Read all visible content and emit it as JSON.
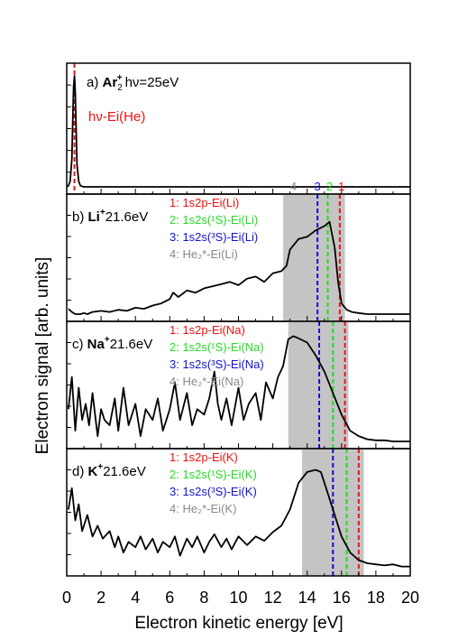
{
  "chart_data": {
    "type": "line",
    "xlabel": "Electron kinetic energy [eV]",
    "ylabel": "Electron signal [arb. units]",
    "xlim": [
      0,
      20
    ],
    "xticks": [
      "0",
      "2",
      "4",
      "6",
      "8",
      "10",
      "12",
      "14",
      "16",
      "18",
      "20"
    ],
    "grid": false,
    "colors": {
      "line": "#000000",
      "c1": "#ee1111",
      "c2": "#22dd22",
      "c3": "#1111cc",
      "c4": "#888888",
      "shade": "#c4c4c4"
    },
    "panels": [
      {
        "id": "a",
        "label_prefix": "a)",
        "label_bold": "Ar",
        "label_sub": "2",
        "label_sup": "+",
        "label_suffix": "hν=25eV",
        "annotation": "hν-Ei(He)",
        "ylim": [
          0,
          1
        ],
        "shade": null,
        "vlines": [
          {
            "x": 0.45,
            "color": "c1"
          }
        ],
        "x": [
          0.0,
          0.1,
          0.2,
          0.3,
          0.35,
          0.4,
          0.45,
          0.5,
          0.55,
          0.6,
          0.7,
          0.8,
          1.0,
          2,
          4,
          6,
          8,
          10,
          12,
          14,
          16,
          18,
          20
        ],
        "y": [
          0.0,
          0.01,
          0.05,
          0.25,
          0.6,
          0.9,
          1.0,
          0.85,
          0.5,
          0.2,
          0.05,
          0.01,
          0.0,
          0,
          0,
          0,
          0,
          0,
          0,
          0,
          0,
          0,
          0
        ]
      },
      {
        "id": "b",
        "label_prefix": "b)",
        "label_bold": "Li",
        "label_sup": "+",
        "label_suffix": "21.6eV",
        "ylim": [
          0,
          1
        ],
        "shade": [
          12.6,
          16.2
        ],
        "top_numbers": [
          {
            "text": "4",
            "x": 13.2,
            "color": "c4"
          },
          {
            "text": "3",
            "x": 14.6,
            "color": "c3"
          },
          {
            "text": "2",
            "x": 15.3,
            "color": "c2"
          },
          {
            "text": "1",
            "x": 16.0,
            "color": "c1"
          }
        ],
        "vlines": [
          {
            "x": 14.6,
            "color": "c3"
          },
          {
            "x": 15.2,
            "color": "c2"
          },
          {
            "x": 15.9,
            "color": "c1"
          }
        ],
        "legend": [
          {
            "text": "1: 1s2p-Ei(Li)",
            "color": "c1"
          },
          {
            "text": "2: 1s2s(¹S)-Ei(Li)",
            "color": "c2"
          },
          {
            "text": "3: 1s2s(³S)-Ei(Li)",
            "color": "c3"
          },
          {
            "text": "4: He₂*-Ei(Li)",
            "color": "c4"
          }
        ],
        "x": [
          0.1,
          0.3,
          0.5,
          0.8,
          1.0,
          1.2,
          1.5,
          2.0,
          2.5,
          3.0,
          3.5,
          4.0,
          4.5,
          5.0,
          5.5,
          6.0,
          6.2,
          6.5,
          7.0,
          7.5,
          8.0,
          8.5,
          9.0,
          9.5,
          10.0,
          10.5,
          11.0,
          11.5,
          12.0,
          12.5,
          12.8,
          13.0,
          13.5,
          14.0,
          14.5,
          15.0,
          15.3,
          15.6,
          15.8,
          16.0,
          16.3,
          16.6,
          17.0,
          17.5,
          18.0,
          18.5,
          19.0,
          19.5,
          20.0
        ],
        "y": [
          0.05,
          0.02,
          0.0,
          0.0,
          0.01,
          0.0,
          0.02,
          0.03,
          0.02,
          0.04,
          0.03,
          0.06,
          0.05,
          0.08,
          0.1,
          0.14,
          0.2,
          0.16,
          0.22,
          0.2,
          0.24,
          0.26,
          0.28,
          0.3,
          0.27,
          0.33,
          0.35,
          0.3,
          0.38,
          0.4,
          0.45,
          0.6,
          0.7,
          0.72,
          0.78,
          0.82,
          0.86,
          0.62,
          0.3,
          0.1,
          0.04,
          0.02,
          0.01,
          0.0,
          0.0,
          0.0,
          0.0,
          0.0,
          0.0
        ]
      },
      {
        "id": "c",
        "label_prefix": "c)",
        "label_bold": "Na",
        "label_sup": "+",
        "label_suffix": "21.6eV",
        "ylim": [
          0,
          1
        ],
        "shade": [
          12.9,
          16.4
        ],
        "vlines": [
          {
            "x": 14.7,
            "color": "c3"
          },
          {
            "x": 15.5,
            "color": "c2"
          },
          {
            "x": 16.2,
            "color": "c1"
          }
        ],
        "legend": [
          {
            "text": "1: 1s2p-Ei(Na)",
            "color": "c1"
          },
          {
            "text": "2: 1s2s(¹S)-Ei(Na)",
            "color": "c2"
          },
          {
            "text": "3: 1s2s(³S)-Ei(Na)",
            "color": "c3"
          },
          {
            "text": "4: He₂*-Ei(Na)",
            "color": "c4"
          }
        ],
        "x": [
          0.1,
          0.3,
          0.5,
          0.7,
          0.9,
          1.1,
          1.3,
          1.5,
          1.8,
          2.0,
          2.2,
          2.5,
          2.8,
          3.0,
          3.3,
          3.6,
          4.0,
          4.3,
          4.6,
          5.0,
          5.3,
          5.6,
          6.0,
          6.3,
          6.6,
          7.0,
          7.3,
          7.6,
          8.0,
          8.3,
          8.6,
          8.8,
          9.0,
          9.3,
          9.6,
          10.0,
          10.3,
          10.6,
          11.0,
          11.3,
          11.6,
          12.0,
          12.3,
          12.6,
          12.9,
          13.2,
          13.5,
          14.0,
          14.5,
          15.0,
          15.5,
          16.0,
          16.5,
          17.0,
          17.5,
          18.0,
          18.5,
          19.0,
          20.0
        ],
        "y": [
          0.3,
          0.6,
          0.1,
          0.5,
          0.2,
          0.35,
          0.15,
          0.45,
          0.05,
          0.3,
          0.2,
          0.15,
          0.4,
          0.1,
          0.5,
          0.15,
          0.35,
          0.05,
          0.3,
          0.2,
          0.4,
          0.1,
          0.3,
          0.55,
          0.2,
          0.45,
          0.15,
          0.3,
          0.25,
          0.4,
          0.65,
          0.35,
          0.2,
          0.4,
          0.15,
          0.5,
          0.2,
          0.35,
          0.45,
          0.2,
          0.55,
          0.4,
          0.6,
          0.7,
          0.95,
          0.98,
          0.96,
          0.92,
          0.8,
          0.65,
          0.45,
          0.25,
          0.1,
          0.05,
          0.02,
          0.01,
          0.01,
          0.0,
          0.0
        ]
      },
      {
        "id": "d",
        "label_prefix": "d)",
        "label_bold": "K",
        "label_sup": "+",
        "label_suffix": "21.6eV",
        "ylim": [
          0,
          1
        ],
        "shade": [
          13.7,
          17.3
        ],
        "vlines": [
          {
            "x": 15.5,
            "color": "c3"
          },
          {
            "x": 16.3,
            "color": "c2"
          },
          {
            "x": 17.0,
            "color": "c1"
          }
        ],
        "legend": [
          {
            "text": "1: 1s2p-Ei(K)",
            "color": "c1"
          },
          {
            "text": "2: 1s2s(¹S)-Ei(K)",
            "color": "c2"
          },
          {
            "text": "3: 1s2s(³S)-Ei(K)",
            "color": "c3"
          },
          {
            "text": "4: He₂*-Ei(K)",
            "color": "c4"
          }
        ],
        "x": [
          0.1,
          0.3,
          0.5,
          0.7,
          0.9,
          1.2,
          1.5,
          1.8,
          2.1,
          2.5,
          2.8,
          3.0,
          3.3,
          3.6,
          4.0,
          4.3,
          4.6,
          5.0,
          5.3,
          5.6,
          6.0,
          6.3,
          6.6,
          7.0,
          7.3,
          7.6,
          8.0,
          8.3,
          8.6,
          9.0,
          9.3,
          9.6,
          10.0,
          10.5,
          11.0,
          11.5,
          12.0,
          12.5,
          13.0,
          13.5,
          14.0,
          14.5,
          14.8,
          15.0,
          15.5,
          16.0,
          16.5,
          17.0,
          17.5,
          18.0,
          18.5,
          19.0,
          19.5,
          20.0
        ],
        "y": [
          0.55,
          0.75,
          0.45,
          0.6,
          0.35,
          0.5,
          0.3,
          0.4,
          0.28,
          0.35,
          0.2,
          0.3,
          0.15,
          0.25,
          0.2,
          0.3,
          0.18,
          0.28,
          0.15,
          0.25,
          0.2,
          0.3,
          0.12,
          0.28,
          0.2,
          0.3,
          0.15,
          0.25,
          0.32,
          0.2,
          0.28,
          0.18,
          0.3,
          0.22,
          0.3,
          0.26,
          0.34,
          0.4,
          0.55,
          0.8,
          0.9,
          0.92,
          0.9,
          0.8,
          0.55,
          0.3,
          0.15,
          0.08,
          0.05,
          0.04,
          0.03,
          0.04,
          0.02,
          0.02
        ]
      }
    ]
  }
}
